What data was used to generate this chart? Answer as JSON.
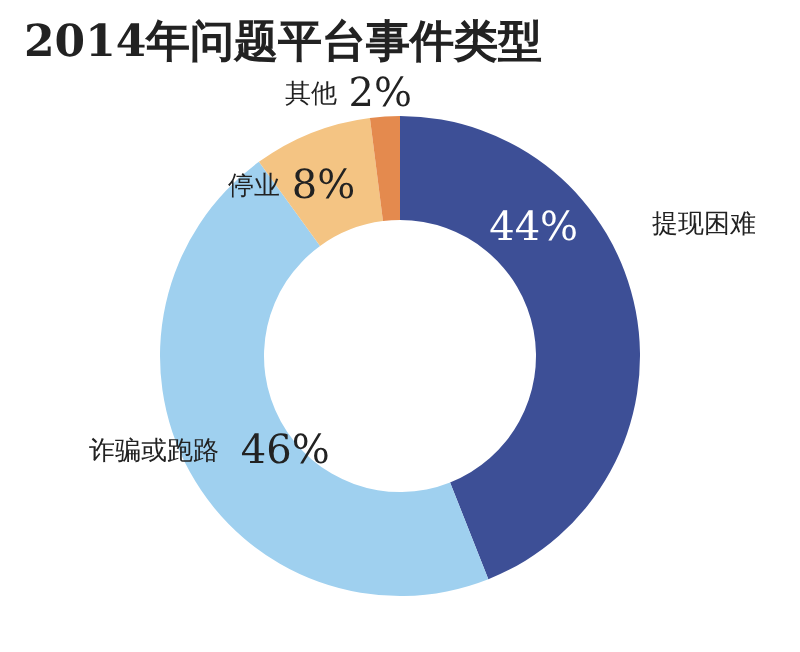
{
  "chart_data": {
    "type": "donut",
    "title": "2014年问题平台事件类型",
    "categories": [
      "提现困难",
      "诈骗或跑路",
      "停业",
      "其他"
    ],
    "values": [
      44,
      46,
      8,
      2
    ],
    "value_labels": [
      "44%",
      "46%",
      "8%",
      "2%"
    ],
    "colors": [
      "#3d4f96",
      "#9fd0ef",
      "#f4c483",
      "#e48a4e"
    ]
  }
}
